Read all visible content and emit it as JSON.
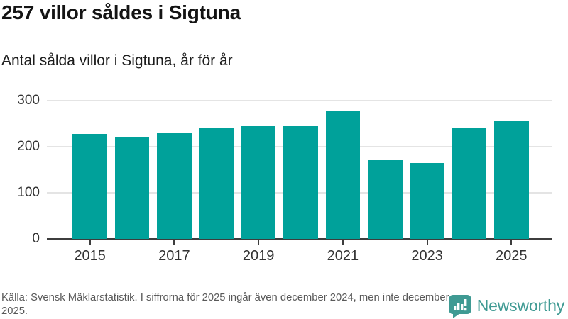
{
  "header": {
    "title": "257 villor såldes i Sigtuna",
    "subtitle": "Antal sålda villor i Sigtuna, år för år"
  },
  "chart_data": {
    "type": "bar",
    "categories": [
      "2015",
      "2016",
      "2017",
      "2018",
      "2019",
      "2020",
      "2021",
      "2022",
      "2023",
      "2024",
      "2025"
    ],
    "values": [
      228,
      222,
      229,
      241,
      244,
      245,
      279,
      171,
      165,
      240,
      257
    ],
    "title": "Antal sålda villor i Sigtuna, år för år",
    "xlabel": "",
    "ylabel": "",
    "ylim": [
      0,
      300
    ],
    "yticks": [
      0,
      100,
      200,
      300
    ],
    "xtick_labels": [
      "2015",
      "2017",
      "2019",
      "2021",
      "2023",
      "2025"
    ],
    "xtick_indices": [
      0,
      2,
      4,
      6,
      8,
      10
    ],
    "bar_color": "#00a19a",
    "grid": true,
    "legend": false
  },
  "footer": {
    "source": "Källa: Svensk Mäklarstatistik. I siffrorna för 2025 ingår även december 2024, men inte december 2025.",
    "brand": "Newsworthy",
    "brand_color": "#3f9a93",
    "logo_icon": "speech-bubble-bar-chart"
  }
}
